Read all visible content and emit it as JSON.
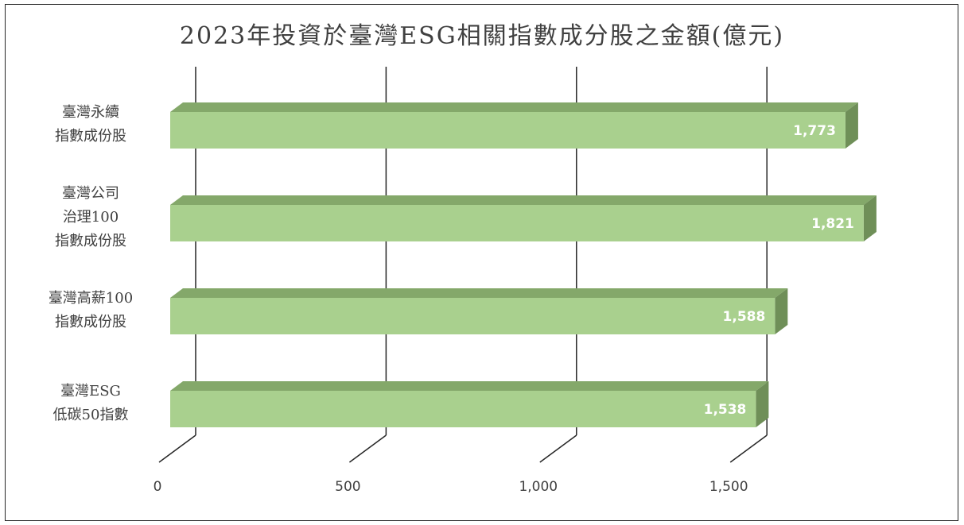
{
  "chart_data": {
    "type": "bar",
    "orientation": "horizontal",
    "title": "2023年投資於臺灣ESG相關指數成分股之金額(億元)",
    "categories": [
      [
        "臺灣永續",
        "指數成份股"
      ],
      [
        "臺灣公司",
        "治理100",
        "指數成份股"
      ],
      [
        "臺灣高薪100",
        "指數成份股"
      ],
      [
        "臺灣ESG",
        "低碳50指數"
      ]
    ],
    "values": [
      1773,
      1821,
      1588,
      1538
    ],
    "value_labels": [
      "1,773",
      "1,821",
      "1,588",
      "1,538"
    ],
    "x_ticks": [
      0,
      500,
      1000,
      1500
    ],
    "x_tick_labels": [
      "0",
      "500",
      "1,000",
      "1,500"
    ],
    "xlim": [
      0,
      2000
    ],
    "grid": true,
    "legend": "none",
    "colors": {
      "bar_front": "#a9d08e",
      "bar_top": "#84a86a",
      "bar_side": "#6f8f58",
      "gridline": "#262626"
    }
  }
}
